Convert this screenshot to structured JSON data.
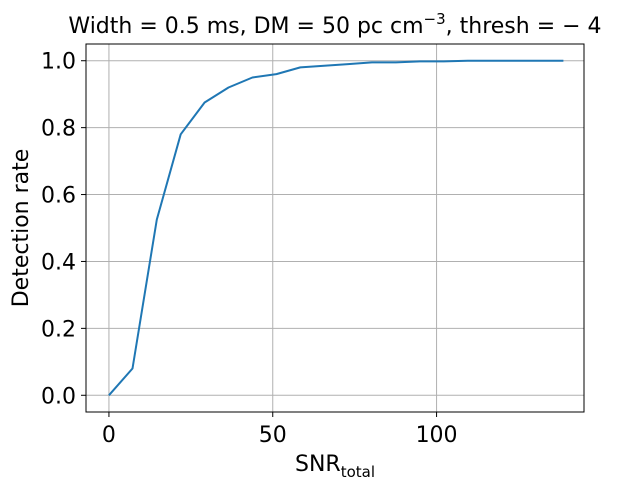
{
  "chart_data": {
    "type": "line",
    "title": {
      "prefix": "Width = 0.5 ms, DM = 50 pc cm",
      "superscript": "−3",
      "suffix": ", thresh = − 4"
    },
    "xlabel": {
      "main": "SNR",
      "subscript": "total"
    },
    "ylabel": "Detection rate",
    "xlim": [
      -7,
      145
    ],
    "ylim": [
      -0.05,
      1.05
    ],
    "x_ticks": [
      0,
      50,
      100
    ],
    "x_tick_labels": [
      "0",
      "50",
      "100"
    ],
    "y_ticks": [
      0.0,
      0.2,
      0.4,
      0.6,
      0.8,
      1.0
    ],
    "y_tick_labels": [
      "0.0",
      "0.2",
      "0.4",
      "0.6",
      "0.8",
      "1.0"
    ],
    "grid": true,
    "series": [
      {
        "color": "#1f77b4",
        "x": [
          0,
          7.2,
          14.6,
          21.9,
          29.2,
          36.5,
          43.8,
          51.1,
          58.4,
          65.7,
          73.0,
          80.3,
          87.6,
          94.9,
          102.2,
          109.5,
          116.8,
          124.1,
          131.4,
          138.7
        ],
        "y": [
          0.0,
          0.08,
          0.525,
          0.78,
          0.875,
          0.92,
          0.95,
          0.96,
          0.98,
          0.985,
          0.99,
          0.995,
          0.995,
          0.998,
          0.998,
          1.0,
          1.0,
          1.0,
          1.0,
          1.0
        ]
      }
    ]
  }
}
